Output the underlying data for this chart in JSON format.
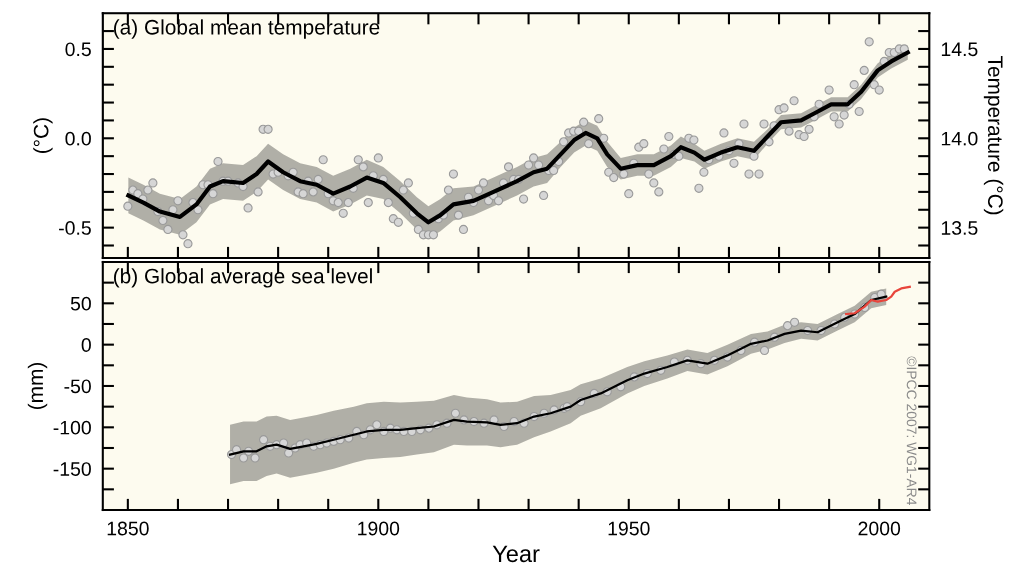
{
  "chart_data": [
    {
      "type": "line",
      "title": "(a) Global mean temperature",
      "ylabel": "(°C)",
      "y2label": "Temperature (°C)",
      "xlim": [
        1845,
        2010
      ],
      "xticks": [
        1850,
        {
          "value": 1860,
          "label": null
        },
        {
          "value": 1870,
          "label": null
        },
        {
          "value": 1880,
          "label": null
        },
        {
          "value": 1890,
          "label": null
        },
        1900,
        {
          "value": 1910,
          "label": null
        },
        {
          "value": 1920,
          "label": null
        },
        {
          "value": 1930,
          "label": null
        },
        {
          "value": 1940,
          "label": null
        },
        1950,
        {
          "value": 1960,
          "label": null
        },
        {
          "value": 1970,
          "label": null
        },
        {
          "value": 1980,
          "label": null
        },
        {
          "value": 1990,
          "label": null
        },
        2000
      ],
      "ylim": [
        -0.67,
        0.7
      ],
      "yticks": [
        {
          "value": -0.6,
          "label": null
        },
        {
          "value": -0.5,
          "label": "-0.5"
        },
        {
          "value": -0.4,
          "label": null
        },
        {
          "value": -0.3,
          "label": null
        },
        {
          "value": -0.2,
          "label": null
        },
        {
          "value": -0.1,
          "label": null
        },
        {
          "value": 0.0,
          "label": "0.0"
        },
        {
          "value": 0.1,
          "label": null
        },
        {
          "value": 0.2,
          "label": null
        },
        {
          "value": 0.3,
          "label": null
        },
        {
          "value": 0.4,
          "label": null
        },
        {
          "value": 0.5,
          "label": "0.5"
        },
        {
          "value": 0.6,
          "label": null
        }
      ],
      "y2lim": [
        13.33,
        14.7
      ],
      "y2ticks": [
        {
          "value": 13.4,
          "label": null
        },
        {
          "value": 13.5,
          "label": "13.5"
        },
        {
          "value": 13.6,
          "label": null
        },
        {
          "value": 13.7,
          "label": null
        },
        {
          "value": 13.8,
          "label": null
        },
        {
          "value": 13.9,
          "label": null
        },
        {
          "value": 14.0,
          "label": "14.0"
        },
        {
          "value": 14.1,
          "label": null
        },
        {
          "value": 14.2,
          "label": null
        },
        {
          "value": 14.3,
          "label": null
        },
        {
          "value": 14.4,
          "label": null
        },
        {
          "value": 14.5,
          "label": "14.5"
        },
        {
          "value": 14.6,
          "label": null
        }
      ],
      "tick_labels": "y",
      "grid": false,
      "legend": false,
      "series": [
        {
          "color": "#000000",
          "marker": "none",
          "x": [
            1850.1,
            1853.1,
            1856.4,
            1860.4,
            1863.7,
            1866.4,
            1869,
            1873,
            1875.7,
            1878,
            1881,
            1884.4,
            1887.7,
            1891,
            1894.4,
            1897.7,
            1901,
            1904.4,
            1907.7,
            1910,
            1912.4,
            1915,
            1919,
            1923,
            1927.7,
            1931,
            1933.7,
            1936.4,
            1939.1,
            1941.4,
            1943.7,
            1945.7,
            1948.4,
            1951.7,
            1955,
            1958.4,
            1960.4,
            1963.1,
            1965.1,
            1968.4,
            1971.7,
            1975,
            1977.7,
            1980.4,
            1984.4,
            1987.1,
            1990.4,
            1993.7,
            1996.4,
            1999.7,
            2002.4,
            2005.7
          ],
          "values": [
            -0.32,
            -0.36,
            -0.41,
            -0.44,
            -0.37,
            -0.27,
            -0.24,
            -0.25,
            -0.2,
            -0.13,
            -0.19,
            -0.24,
            -0.26,
            -0.31,
            -0.27,
            -0.22,
            -0.25,
            -0.33,
            -0.42,
            -0.47,
            -0.43,
            -0.37,
            -0.35,
            -0.3,
            -0.24,
            -0.19,
            -0.17,
            -0.09,
            -0.01,
            0.03,
            0.0,
            -0.09,
            -0.17,
            -0.15,
            -0.15,
            -0.1,
            -0.05,
            -0.08,
            -0.12,
            -0.08,
            -0.05,
            -0.07,
            0.01,
            0.09,
            0.1,
            0.14,
            0.19,
            0.19,
            0.26,
            0.38,
            0.43,
            0.48
          ],
          "lower": [
            -0.42,
            -0.46,
            -0.51,
            -0.54,
            -0.47,
            -0.37,
            -0.34,
            -0.35,
            -0.3,
            -0.23,
            -0.29,
            -0.34,
            -0.36,
            -0.41,
            -0.37,
            -0.32,
            -0.34,
            -0.42,
            -0.51,
            -0.56,
            -0.52,
            -0.46,
            -0.43,
            -0.38,
            -0.32,
            -0.27,
            -0.25,
            -0.16,
            -0.08,
            -0.04,
            -0.07,
            -0.16,
            -0.23,
            -0.21,
            -0.21,
            -0.16,
            -0.11,
            -0.13,
            -0.17,
            -0.13,
            -0.1,
            -0.12,
            -0.03,
            0.05,
            0.06,
            0.1,
            0.15,
            0.15,
            0.22,
            0.34,
            0.39,
            0.44
          ],
          "upper": [
            -0.22,
            -0.26,
            -0.31,
            -0.34,
            -0.27,
            -0.17,
            -0.14,
            -0.15,
            -0.1,
            -0.03,
            -0.09,
            -0.14,
            -0.16,
            -0.21,
            -0.17,
            -0.12,
            -0.16,
            -0.24,
            -0.33,
            -0.38,
            -0.34,
            -0.28,
            -0.27,
            -0.22,
            -0.16,
            -0.11,
            -0.09,
            -0.02,
            0.06,
            0.1,
            0.07,
            -0.02,
            -0.11,
            -0.09,
            -0.09,
            -0.04,
            0.01,
            -0.03,
            -0.07,
            -0.03,
            0.0,
            -0.02,
            0.05,
            0.13,
            0.14,
            0.18,
            0.23,
            0.23,
            0.3,
            0.42,
            0.47,
            0.52
          ]
        },
        {
          "type": "scatter",
          "color": "#d6d6d6",
          "marker": "circle",
          "x": [
            1850,
            1851,
            1852,
            1853,
            1854,
            1855,
            1856,
            1857,
            1858,
            1859,
            1860,
            1861,
            1862,
            1863,
            1864,
            1865,
            1866,
            1867,
            1868,
            1869,
            1870,
            1872,
            1873,
            1874,
            1876,
            1877,
            1878,
            1879,
            1880,
            1882,
            1883,
            1884,
            1885,
            1886,
            1887,
            1888,
            1889,
            1890,
            1891,
            1892,
            1893,
            1894,
            1895,
            1896,
            1897,
            1898,
            1899,
            1900,
            1901,
            1902,
            1903,
            1904,
            1905,
            1906,
            1907,
            1908,
            1909,
            1910,
            1911,
            1912,
            1913,
            1914,
            1915,
            1916,
            1917,
            1918,
            1919,
            1920,
            1921,
            1922,
            1923,
            1924,
            1925,
            1926,
            1927,
            1928,
            1929,
            1930,
            1931,
            1932,
            1933,
            1934,
            1935,
            1936,
            1937,
            1938,
            1939,
            1940,
            1941,
            1942,
            1944,
            1945,
            1946,
            1947,
            1949,
            1950,
            1951,
            1952,
            1953,
            1954,
            1955,
            1956,
            1957,
            1958,
            1959,
            1960,
            1962,
            1963,
            1964,
            1965,
            1966,
            1968,
            1969,
            1970,
            1971,
            1972,
            1973,
            1974,
            1975,
            1976,
            1977,
            1978,
            1979,
            1980,
            1981,
            1982,
            1983,
            1984,
            1985,
            1986,
            1987,
            1988,
            1990,
            1991,
            1992,
            1993,
            1994,
            1995,
            1996,
            1997,
            1998,
            1999,
            2000,
            2001,
            2002,
            2003,
            2004,
            2005
          ],
          "values": [
            -0.38,
            -0.29,
            -0.31,
            -0.34,
            -0.29,
            -0.25,
            -0.41,
            -0.46,
            -0.51,
            -0.4,
            -0.35,
            -0.54,
            -0.59,
            -0.36,
            -0.4,
            -0.26,
            -0.26,
            -0.31,
            -0.13,
            -0.24,
            -0.24,
            -0.25,
            -0.27,
            -0.39,
            -0.3,
            0.05,
            0.05,
            -0.2,
            -0.19,
            -0.21,
            -0.19,
            -0.3,
            -0.31,
            -0.24,
            -0.3,
            -0.23,
            -0.12,
            -0.31,
            -0.35,
            -0.36,
            -0.42,
            -0.36,
            -0.28,
            -0.12,
            -0.16,
            -0.36,
            -0.21,
            -0.11,
            -0.23,
            -0.36,
            -0.45,
            -0.47,
            -0.29,
            -0.25,
            -0.42,
            -0.51,
            -0.54,
            -0.54,
            -0.54,
            -0.45,
            -0.43,
            -0.29,
            -0.2,
            -0.43,
            -0.51,
            -0.33,
            -0.36,
            -0.29,
            -0.25,
            -0.35,
            -0.32,
            -0.35,
            -0.25,
            -0.16,
            -0.23,
            -0.23,
            -0.34,
            -0.15,
            -0.11,
            -0.15,
            -0.32,
            -0.18,
            -0.18,
            -0.13,
            -0.02,
            0.03,
            0.04,
            0.04,
            0.09,
            -0.03,
            0.11,
            0.0,
            -0.19,
            -0.22,
            -0.2,
            -0.31,
            -0.14,
            -0.05,
            -0.03,
            -0.2,
            -0.25,
            -0.3,
            -0.06,
            0.01,
            -0.09,
            -0.1,
            0.0,
            -0.01,
            -0.28,
            -0.19,
            -0.12,
            -0.1,
            0.03,
            -0.07,
            -0.14,
            -0.03,
            0.08,
            -0.2,
            -0.1,
            -0.2,
            0.08,
            -0.02,
            0.07,
            0.16,
            0.17,
            0.04,
            0.21,
            0.02,
            0.01,
            0.05,
            0.12,
            0.19,
            0.27,
            0.12,
            0.08,
            0.13,
            0.19,
            0.3,
            0.15,
            0.38,
            0.54,
            0.3,
            0.27,
            0.43,
            0.48,
            0.48,
            0.5,
            0.5
          ]
        }
      ]
    },
    {
      "type": "line",
      "title": "(b) Global average sea level",
      "ylabel": "(mm)",
      "xlabel": "Year",
      "xlim": [
        1845,
        2010
      ],
      "xticks": [
        1850,
        {
          "value": 1860,
          "label": null
        },
        {
          "value": 1870,
          "label": null
        },
        {
          "value": 1880,
          "label": null
        },
        {
          "value": 1890,
          "label": null
        },
        1900,
        {
          "value": 1910,
          "label": null
        },
        {
          "value": 1920,
          "label": null
        },
        {
          "value": 1930,
          "label": null
        },
        {
          "value": 1940,
          "label": null
        },
        1950,
        {
          "value": 1960,
          "label": null
        },
        {
          "value": 1970,
          "label": null
        },
        {
          "value": 1980,
          "label": null
        },
        {
          "value": 1990,
          "label": null
        },
        2000
      ],
      "ylim": [
        -200,
        100
      ],
      "yticks": [
        {
          "value": -175,
          "label": null
        },
        {
          "value": -150,
          "label": "-150"
        },
        {
          "value": -125,
          "label": null
        },
        {
          "value": -100,
          "label": "-100"
        },
        {
          "value": -75,
          "label": null
        },
        {
          "value": -50,
          "label": "-50"
        },
        {
          "value": -25,
          "label": null
        },
        0,
        {
          "value": 25,
          "label": null
        },
        50,
        {
          "value": 75,
          "label": null
        }
      ],
      "grid": false,
      "legend": false,
      "annotations": [
        "©IPCC 2007: WG1-AR4"
      ],
      "series": [
        {
          "color": "#000000",
          "marker": "none",
          "x": [
            1870.4,
            1873.1,
            1875.7,
            1877.7,
            1879.7,
            1882.4,
            1885.1,
            1887.7,
            1891.1,
            1895.1,
            1897.7,
            1901.1,
            1904.4,
            1907.7,
            1911.1,
            1915.1,
            1917.7,
            1921.7,
            1924.4,
            1927.7,
            1931.1,
            1934.4,
            1938.4,
            1940.4,
            1944.4,
            1949.7,
            1953.1,
            1957.7,
            1961.7,
            1965.7,
            1969.7,
            1974.4,
            1977.7,
            1981.1,
            1984.4,
            1987.7,
            1991.7,
            1995.1,
            1998.4,
            2001.4
          ],
          "values": [
            -133,
            -129,
            -129,
            -123,
            -121,
            -126,
            -123,
            -120,
            -115,
            -109,
            -105,
            -103,
            -103,
            -101,
            -99,
            -91,
            -93,
            -94,
            -97,
            -95,
            -87,
            -83,
            -75,
            -67,
            -59,
            -43,
            -35,
            -27,
            -19,
            -23,
            -13,
            1,
            5,
            13,
            17,
            15,
            27,
            37,
            54,
            58
          ],
          "lower": [
            -169,
            -165,
            -165,
            -159,
            -156,
            -161,
            -158,
            -155,
            -150,
            -143,
            -139,
            -137,
            -136,
            -133,
            -130,
            -121,
            -122,
            -122,
            -124,
            -121,
            -112,
            -105,
            -95,
            -86,
            -77,
            -59,
            -50,
            -41,
            -32,
            -36,
            -26,
            -11,
            -6,
            2,
            7,
            5,
            17,
            27,
            44,
            48
          ],
          "upper": [
            -97,
            -93,
            -93,
            -87,
            -86,
            -91,
            -88,
            -85,
            -80,
            -75,
            -71,
            -69,
            -70,
            -69,
            -68,
            -61,
            -64,
            -66,
            -70,
            -69,
            -62,
            -61,
            -55,
            -48,
            -41,
            -27,
            -20,
            -13,
            -6,
            -10,
            0,
            13,
            16,
            24,
            27,
            25,
            37,
            47,
            64,
            68
          ]
        },
        {
          "type": "scatter",
          "color": "#d6d6d6",
          "marker": "circle",
          "x": [
            1870.7,
            1871.7,
            1873.1,
            1874.1,
            1875.4,
            1877.1,
            1878.4,
            1879.7,
            1881.1,
            1882.1,
            1883.4,
            1884.4,
            1885.7,
            1887.1,
            1888.4,
            1889.7,
            1891.1,
            1892.4,
            1894.1,
            1895.7,
            1897.1,
            1898.4,
            1899.7,
            1901.1,
            1902.4,
            1903.7,
            1905.1,
            1906.7,
            1908.4,
            1910.1,
            1911.7,
            1913.7,
            1915.4,
            1917.1,
            1919.1,
            1921.1,
            1923.1,
            1925.1,
            1927.1,
            1929.1,
            1931.1,
            1933.1,
            1935.1,
            1937.1,
            1937.7,
            1940.4,
            1943.1,
            1945.7,
            1948.4,
            1951.1,
            1953.7,
            1956.4,
            1959.1,
            1961.7,
            1964.4,
            1967.1,
            1969.7,
            1972.4,
            1975.1,
            1977.1,
            1979.1,
            1981.7,
            1983.1,
            1985.7,
            1988.4,
            1991.1,
            1993.1,
            1995.1,
            1997.1,
            1999.1,
            2000.4
          ],
          "values": [
            -133,
            -127,
            -137,
            -129,
            -137,
            -115,
            -123,
            -121,
            -119,
            -131,
            -125,
            -121,
            -119,
            -123,
            -121,
            -119,
            -117,
            -115,
            -113,
            -105,
            -109,
            -103,
            -97,
            -105,
            -101,
            -103,
            -105,
            -105,
            -103,
            -101,
            -97,
            -95,
            -83,
            -91,
            -93,
            -95,
            -91,
            -99,
            -93,
            -95,
            -87,
            -83,
            -79,
            -77,
            -75,
            -69,
            -59,
            -57,
            -51,
            -39,
            -35,
            -31,
            -21,
            -19,
            -23,
            -19,
            -15,
            -7,
            3,
            -7,
            9,
            23,
            27,
            17,
            17,
            25,
            33,
            37,
            45,
            57,
            61
          ]
        },
        {
          "color": "#e8453c",
          "marker": "none",
          "x": [
            1993.4,
            1995.1,
            1997.1,
            1998.4,
            1999.7,
            2001.4,
            2002.4,
            2003.1,
            2004.4,
            2006.1
          ],
          "values": [
            37,
            38,
            46,
            54,
            52,
            54,
            58,
            64,
            68,
            70
          ]
        }
      ]
    }
  ]
}
